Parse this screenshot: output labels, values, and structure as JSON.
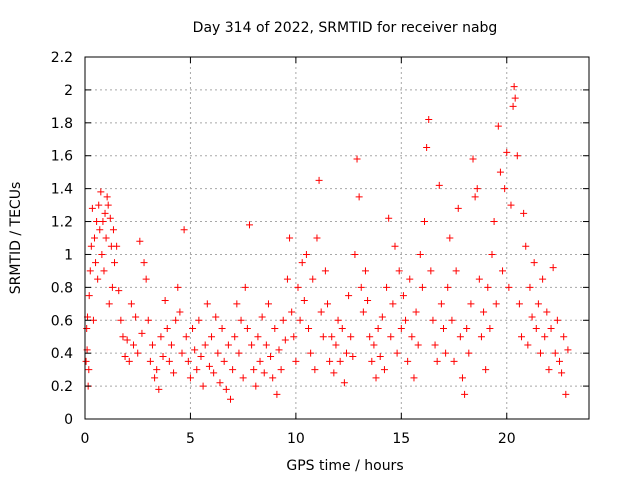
{
  "chart_data": {
    "type": "scatter",
    "title": "Day 314 of 2022, SRMTID for receiver nabg",
    "xlabel": "GPS time / hours",
    "ylabel": "SRMTID / TECUs",
    "xlim": [
      0,
      23.9
    ],
    "ylim": [
      0,
      2.2
    ],
    "x_ticks": [
      0,
      5,
      10,
      15,
      20
    ],
    "x_tick_labels": [
      "0",
      "5",
      "10",
      "15",
      "20"
    ],
    "y_ticks": [
      0,
      0.2,
      0.4,
      0.6,
      0.8,
      1.0,
      1.2,
      1.4,
      1.6,
      1.8,
      2.0,
      2.2
    ],
    "y_tick_labels": [
      "0",
      "0.2",
      "0.4",
      "0.6",
      "0.8",
      "1",
      "1.2",
      "1.4",
      "1.6",
      "1.8",
      "2",
      "2.2"
    ],
    "grid": true,
    "marker": "+",
    "color": "#ff0000",
    "series": [
      {
        "name": "SRMTID",
        "points": [
          [
            0.05,
            0.35
          ],
          [
            0.08,
            0.55
          ],
          [
            0.1,
            0.42
          ],
          [
            0.12,
            0.62
          ],
          [
            0.15,
            0.2
          ],
          [
            0.18,
            0.3
          ],
          [
            0.2,
            0.75
          ],
          [
            0.25,
            0.9
          ],
          [
            0.3,
            1.05
          ],
          [
            0.35,
            1.28
          ],
          [
            0.4,
            0.6
          ],
          [
            0.45,
            1.1
          ],
          [
            0.5,
            0.95
          ],
          [
            0.55,
            1.2
          ],
          [
            0.6,
            0.85
          ],
          [
            0.65,
            1.3
          ],
          [
            0.7,
            1.15
          ],
          [
            0.75,
            1.38
          ],
          [
            0.8,
            1.0
          ],
          [
            0.85,
            1.2
          ],
          [
            0.9,
            0.9
          ],
          [
            0.95,
            1.25
          ],
          [
            1.0,
            1.1
          ],
          [
            1.05,
            1.35
          ],
          [
            1.1,
            1.3
          ],
          [
            1.15,
            0.7
          ],
          [
            1.2,
            1.22
          ],
          [
            1.25,
            1.05
          ],
          [
            1.3,
            0.8
          ],
          [
            1.35,
            1.15
          ],
          [
            1.4,
            0.95
          ],
          [
            1.5,
            1.05
          ],
          [
            1.6,
            0.78
          ],
          [
            1.7,
            0.6
          ],
          [
            1.8,
            0.5
          ],
          [
            1.9,
            0.38
          ],
          [
            2.0,
            0.48
          ],
          [
            2.1,
            0.35
          ],
          [
            2.2,
            0.7
          ],
          [
            2.3,
            0.45
          ],
          [
            2.4,
            0.62
          ],
          [
            2.5,
            0.4
          ],
          [
            2.6,
            1.08
          ],
          [
            2.7,
            0.52
          ],
          [
            2.8,
            0.95
          ],
          [
            2.9,
            0.85
          ],
          [
            3.0,
            0.6
          ],
          [
            3.1,
            0.35
          ],
          [
            3.2,
            0.45
          ],
          [
            3.3,
            0.25
          ],
          [
            3.4,
            0.3
          ],
          [
            3.5,
            0.18
          ],
          [
            3.6,
            0.5
          ],
          [
            3.7,
            0.38
          ],
          [
            3.8,
            0.72
          ],
          [
            3.9,
            0.55
          ],
          [
            4.0,
            0.35
          ],
          [
            4.1,
            0.45
          ],
          [
            4.2,
            0.28
          ],
          [
            4.3,
            0.6
          ],
          [
            4.4,
            0.8
          ],
          [
            4.5,
            0.65
          ],
          [
            4.6,
            0.4
          ],
          [
            4.7,
            1.15
          ],
          [
            4.8,
            0.5
          ],
          [
            4.9,
            0.35
          ],
          [
            5.0,
            0.25
          ],
          [
            5.1,
            0.55
          ],
          [
            5.2,
            0.42
          ],
          [
            5.3,
            0.3
          ],
          [
            5.4,
            0.6
          ],
          [
            5.5,
            0.38
          ],
          [
            5.6,
            0.2
          ],
          [
            5.7,
            0.45
          ],
          [
            5.8,
            0.7
          ],
          [
            5.9,
            0.32
          ],
          [
            6.0,
            0.5
          ],
          [
            6.1,
            0.28
          ],
          [
            6.2,
            0.62
          ],
          [
            6.3,
            0.4
          ],
          [
            6.4,
            0.22
          ],
          [
            6.5,
            0.55
          ],
          [
            6.6,
            0.35
          ],
          [
            6.7,
            0.18
          ],
          [
            6.8,
            0.45
          ],
          [
            6.9,
            0.12
          ],
          [
            7.0,
            0.3
          ],
          [
            7.1,
            0.5
          ],
          [
            7.2,
            0.7
          ],
          [
            7.3,
            0.4
          ],
          [
            7.4,
            0.6
          ],
          [
            7.5,
            0.25
          ],
          [
            7.6,
            0.8
          ],
          [
            7.7,
            0.55
          ],
          [
            7.8,
            1.18
          ],
          [
            7.9,
            0.45
          ],
          [
            8.0,
            0.3
          ],
          [
            8.1,
            0.2
          ],
          [
            8.2,
            0.5
          ],
          [
            8.3,
            0.35
          ],
          [
            8.4,
            0.62
          ],
          [
            8.5,
            0.28
          ],
          [
            8.6,
            0.45
          ],
          [
            8.7,
            0.7
          ],
          [
            8.8,
            0.38
          ],
          [
            8.9,
            0.25
          ],
          [
            9.0,
            0.55
          ],
          [
            9.1,
            0.15
          ],
          [
            9.2,
            0.42
          ],
          [
            9.3,
            0.3
          ],
          [
            9.4,
            0.6
          ],
          [
            9.5,
            0.48
          ],
          [
            9.6,
            0.85
          ],
          [
            9.7,
            1.1
          ],
          [
            9.8,
            0.65
          ],
          [
            9.9,
            0.5
          ],
          [
            10.0,
            0.35
          ],
          [
            10.1,
            0.8
          ],
          [
            10.2,
            0.6
          ],
          [
            10.3,
            0.95
          ],
          [
            10.4,
            0.72
          ],
          [
            10.5,
            1.0
          ],
          [
            10.6,
            0.55
          ],
          [
            10.7,
            0.4
          ],
          [
            10.8,
            0.85
          ],
          [
            10.9,
            0.3
          ],
          [
            11.0,
            1.1
          ],
          [
            11.1,
            1.45
          ],
          [
            11.2,
            0.65
          ],
          [
            11.3,
            0.5
          ],
          [
            11.4,
            0.9
          ],
          [
            11.5,
            0.7
          ],
          [
            11.6,
            0.35
          ],
          [
            11.7,
            0.5
          ],
          [
            11.8,
            0.28
          ],
          [
            11.9,
            0.45
          ],
          [
            12.0,
            0.6
          ],
          [
            12.1,
            0.35
          ],
          [
            12.2,
            0.55
          ],
          [
            12.3,
            0.22
          ],
          [
            12.4,
            0.4
          ],
          [
            12.5,
            0.75
          ],
          [
            12.6,
            0.5
          ],
          [
            12.7,
            0.38
          ],
          [
            12.8,
            1.0
          ],
          [
            12.9,
            1.58
          ],
          [
            13.0,
            1.35
          ],
          [
            13.1,
            0.8
          ],
          [
            13.2,
            0.65
          ],
          [
            13.3,
            0.9
          ],
          [
            13.4,
            0.72
          ],
          [
            13.5,
            0.5
          ],
          [
            13.6,
            0.35
          ],
          [
            13.7,
            0.45
          ],
          [
            13.8,
            0.25
          ],
          [
            13.9,
            0.55
          ],
          [
            14.0,
            0.38
          ],
          [
            14.1,
            0.62
          ],
          [
            14.2,
            0.3
          ],
          [
            14.3,
            0.8
          ],
          [
            14.4,
            1.22
          ],
          [
            14.5,
            0.5
          ],
          [
            14.6,
            0.7
          ],
          [
            14.7,
            1.05
          ],
          [
            14.8,
            0.4
          ],
          [
            14.9,
            0.9
          ],
          [
            15.0,
            0.55
          ],
          [
            15.1,
            0.75
          ],
          [
            15.2,
            0.6
          ],
          [
            15.3,
            0.35
          ],
          [
            15.4,
            0.85
          ],
          [
            15.5,
            0.5
          ],
          [
            15.6,
            0.25
          ],
          [
            15.7,
            0.65
          ],
          [
            15.8,
            0.45
          ],
          [
            15.9,
            1.0
          ],
          [
            16.0,
            0.8
          ],
          [
            16.1,
            1.2
          ],
          [
            16.2,
            1.65
          ],
          [
            16.3,
            1.82
          ],
          [
            16.4,
            0.9
          ],
          [
            16.5,
            0.6
          ],
          [
            16.6,
            0.45
          ],
          [
            16.7,
            0.35
          ],
          [
            16.8,
            1.42
          ],
          [
            16.9,
            0.7
          ],
          [
            17.0,
            0.55
          ],
          [
            17.1,
            0.4
          ],
          [
            17.2,
            0.8
          ],
          [
            17.3,
            1.1
          ],
          [
            17.4,
            0.6
          ],
          [
            17.5,
            0.35
          ],
          [
            17.6,
            0.9
          ],
          [
            17.7,
            1.28
          ],
          [
            17.8,
            0.5
          ],
          [
            17.9,
            0.25
          ],
          [
            18.0,
            0.15
          ],
          [
            18.1,
            0.55
          ],
          [
            18.2,
            0.4
          ],
          [
            18.3,
            0.7
          ],
          [
            18.4,
            1.58
          ],
          [
            18.5,
            1.35
          ],
          [
            18.6,
            1.4
          ],
          [
            18.7,
            0.85
          ],
          [
            18.8,
            0.5
          ],
          [
            18.9,
            0.65
          ],
          [
            19.0,
            0.3
          ],
          [
            19.1,
            0.8
          ],
          [
            19.2,
            0.55
          ],
          [
            19.3,
            1.0
          ],
          [
            19.4,
            1.2
          ],
          [
            19.5,
            0.7
          ],
          [
            19.6,
            1.78
          ],
          [
            19.7,
            1.5
          ],
          [
            19.8,
            0.9
          ],
          [
            19.9,
            1.4
          ],
          [
            20.0,
            1.62
          ],
          [
            20.1,
            0.8
          ],
          [
            20.2,
            1.3
          ],
          [
            20.3,
            1.9
          ],
          [
            20.35,
            2.02
          ],
          [
            20.4,
            1.95
          ],
          [
            20.5,
            1.6
          ],
          [
            20.6,
            0.7
          ],
          [
            20.7,
            0.5
          ],
          [
            20.8,
            1.25
          ],
          [
            20.9,
            1.05
          ],
          [
            21.0,
            0.45
          ],
          [
            21.1,
            0.8
          ],
          [
            21.2,
            0.62
          ],
          [
            21.3,
            0.95
          ],
          [
            21.4,
            0.55
          ],
          [
            21.5,
            0.7
          ],
          [
            21.6,
            0.4
          ],
          [
            21.7,
            0.85
          ],
          [
            21.8,
            0.5
          ],
          [
            21.9,
            0.65
          ],
          [
            22.0,
            0.3
          ],
          [
            22.1,
            0.55
          ],
          [
            22.2,
            0.92
          ],
          [
            22.3,
            0.4
          ],
          [
            22.4,
            0.6
          ],
          [
            22.5,
            0.35
          ],
          [
            22.6,
            0.28
          ],
          [
            22.7,
            0.5
          ],
          [
            22.8,
            0.15
          ],
          [
            22.9,
            0.42
          ]
        ]
      }
    ]
  }
}
